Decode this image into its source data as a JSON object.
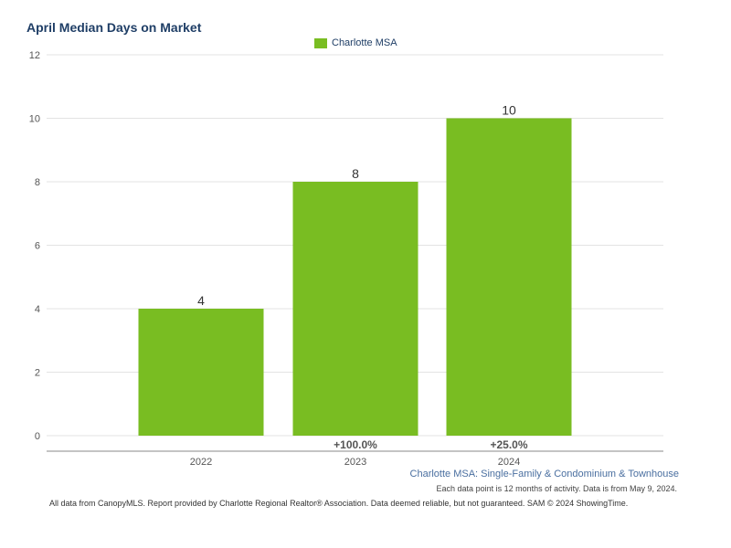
{
  "chart_data": {
    "type": "bar",
    "title": "April Median Days on Market",
    "categories": [
      "2022",
      "2023",
      "2024"
    ],
    "series": [
      {
        "name": "Charlotte MSA",
        "values": [
          4,
          8,
          10
        ],
        "color": "#79bd22"
      }
    ],
    "data_labels": [
      "4",
      "8",
      "10"
    ],
    "change_labels": [
      "",
      "+100.0%",
      "+25.0%"
    ],
    "ylim": [
      0,
      12
    ],
    "yticks": [
      0,
      2,
      4,
      6,
      8,
      10,
      12
    ],
    "grid": true,
    "legend_position": "top-center"
  },
  "subtitle": "Charlotte MSA: Single-Family & Condominium & Townhouse",
  "note": "Each data point is 12 months of activity. Data is from May 9, 2024.",
  "footer": "All data from CanopyMLS. Report provided by Charlotte Regional Realtor® Association. Data deemed reliable, but not guaranteed. SAM © 2024 ShowingTime.",
  "colors": {
    "title": "#1f3e66",
    "bar": "#79bd22",
    "grid": "#e3e3e3",
    "axis": "#888888"
  }
}
